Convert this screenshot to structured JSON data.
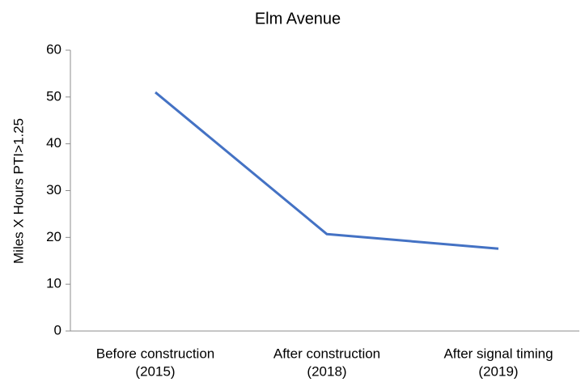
{
  "chart_data": {
    "type": "line",
    "title": "Elm Avenue",
    "y_label": "Miles X Hours PTI>1.25",
    "categories": [
      [
        "Before construction",
        "(2015)"
      ],
      [
        "After construction",
        "(2018)"
      ],
      [
        "After signal timing",
        "(2019)"
      ]
    ],
    "series": [
      {
        "name": "Elm Avenue",
        "color": "#4472c4",
        "values": [
          51,
          20.7,
          17.6
        ]
      }
    ],
    "ylim": [
      0,
      60
    ],
    "yticks": [
      0,
      10,
      20,
      30,
      40,
      50,
      60
    ],
    "grid": false
  }
}
